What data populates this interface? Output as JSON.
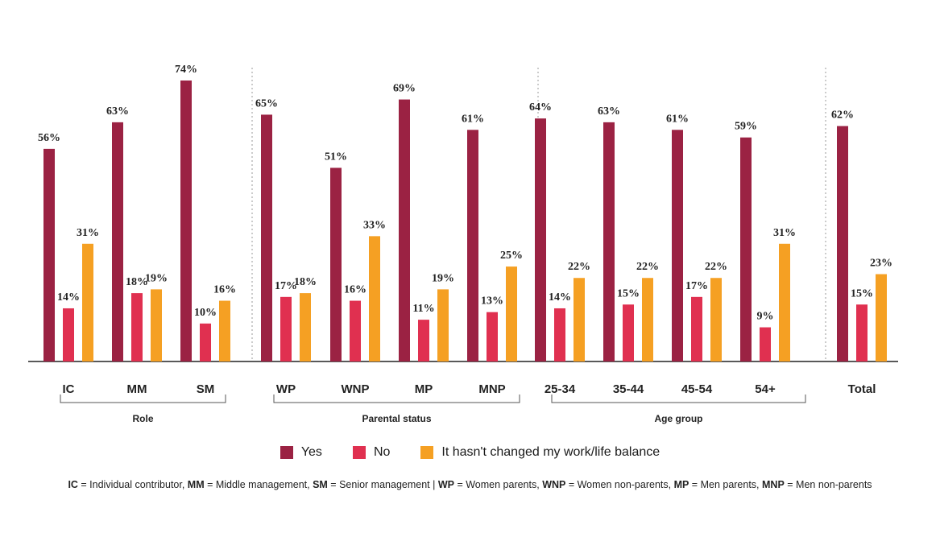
{
  "colors": {
    "yes": "#9b2243",
    "no": "#e03050",
    "unchanged": "#f5a023"
  },
  "chart_data": {
    "type": "bar",
    "categories": [
      "IC",
      "MM",
      "SM",
      "WP",
      "WNP",
      "MP",
      "MNP",
      "25-34",
      "35-44",
      "45-54",
      "54+",
      "Total"
    ],
    "groups": [
      {
        "label": "Role",
        "categories": [
          "IC",
          "MM",
          "SM"
        ]
      },
      {
        "label": "Parental status",
        "categories": [
          "WP",
          "WNP",
          "MP",
          "MNP"
        ]
      },
      {
        "label": "Age group",
        "categories": [
          "25-34",
          "35-44",
          "45-54",
          "54+"
        ]
      }
    ],
    "series": [
      {
        "name": "Yes",
        "values": [
          56,
          63,
          74,
          65,
          51,
          69,
          61,
          64,
          63,
          61,
          59,
          62
        ]
      },
      {
        "name": "No",
        "values": [
          14,
          18,
          10,
          17,
          16,
          11,
          13,
          14,
          15,
          17,
          9,
          15
        ]
      },
      {
        "name": "It hasn't changed my work/life balance",
        "values": [
          31,
          19,
          16,
          18,
          33,
          19,
          25,
          22,
          22,
          22,
          31,
          23
        ]
      }
    ],
    "value_suffix": "%",
    "ylim": [
      0,
      80
    ],
    "grid": false,
    "legend_position": "bottom"
  },
  "footnote": [
    {
      "abbr": "IC",
      "text": " = Individual contributor,  "
    },
    {
      "abbr": "MM",
      "text": " = Middle management, "
    },
    {
      "abbr": "SM",
      "text": " = Senior management | "
    },
    {
      "abbr": "WP",
      "text": " = Women parents, "
    },
    {
      "abbr": "WNP",
      "text": " = Women non-parents, "
    },
    {
      "abbr": "MP",
      "text": " = Men parents, "
    },
    {
      "abbr": "MNP",
      "text": " = Men non-parents"
    }
  ]
}
